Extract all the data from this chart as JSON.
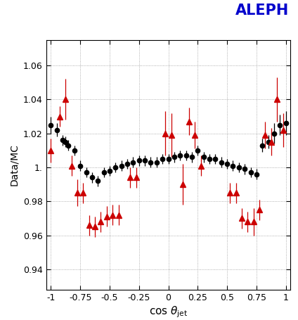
{
  "title": "ALEPH",
  "xlabel": "cos θ_{jet}",
  "ylabel": "Data/MC",
  "xlim": [
    -1.04,
    1.04
  ],
  "ylim": [
    0.928,
    1.075
  ],
  "yticks": [
    0.94,
    0.96,
    0.98,
    1.0,
    1.02,
    1.04,
    1.06
  ],
  "xticks": [
    -1,
    -0.75,
    -0.5,
    -0.25,
    0,
    0.25,
    0.5,
    0.75,
    1
  ],
  "circles_x": [
    -1.0,
    -0.95,
    -0.9,
    -0.875,
    -0.85,
    -0.8,
    -0.75,
    -0.7,
    -0.65,
    -0.6,
    -0.55,
    -0.5,
    -0.45,
    -0.4,
    -0.35,
    -0.3,
    -0.25,
    -0.2,
    -0.15,
    -0.1,
    -0.05,
    0.0,
    0.05,
    0.1,
    0.15,
    0.2,
    0.25,
    0.3,
    0.35,
    0.4,
    0.45,
    0.5,
    0.55,
    0.6,
    0.65,
    0.7,
    0.75,
    0.8,
    0.85,
    0.9,
    0.95,
    1.0
  ],
  "circles_y": [
    1.025,
    1.022,
    1.016,
    1.015,
    1.013,
    1.01,
    1.001,
    0.997,
    0.994,
    0.992,
    0.997,
    0.998,
    1.0,
    1.001,
    1.002,
    1.003,
    1.004,
    1.004,
    1.003,
    1.003,
    1.005,
    1.005,
    1.006,
    1.007,
    1.007,
    1.006,
    1.01,
    1.006,
    1.005,
    1.005,
    1.003,
    1.002,
    1.001,
    1.0,
    0.999,
    0.997,
    0.996,
    1.013,
    1.015,
    1.02,
    1.025,
    1.026
  ],
  "circles_yerr": [
    0.005,
    0.004,
    0.003,
    0.003,
    0.003,
    0.003,
    0.003,
    0.003,
    0.003,
    0.003,
    0.003,
    0.003,
    0.003,
    0.003,
    0.003,
    0.003,
    0.003,
    0.003,
    0.003,
    0.003,
    0.003,
    0.003,
    0.003,
    0.003,
    0.003,
    0.003,
    0.003,
    0.003,
    0.003,
    0.003,
    0.003,
    0.003,
    0.003,
    0.003,
    0.003,
    0.003,
    0.003,
    0.004,
    0.004,
    0.006,
    0.006,
    0.007
  ],
  "triangles_x": [
    -1.0,
    -0.925,
    -0.875,
    -0.825,
    -0.775,
    -0.725,
    -0.675,
    -0.625,
    -0.575,
    -0.525,
    -0.475,
    -0.425,
    -0.325,
    -0.275,
    -0.025,
    0.025,
    0.125,
    0.175,
    0.225,
    0.275,
    0.525,
    0.575,
    0.625,
    0.675,
    0.725,
    0.775,
    0.825,
    0.875,
    0.925,
    0.975
  ],
  "triangles_y": [
    1.01,
    1.03,
    1.04,
    1.001,
    0.985,
    0.985,
    0.966,
    0.965,
    0.968,
    0.971,
    0.972,
    0.972,
    0.994,
    0.994,
    1.02,
    1.019,
    0.99,
    1.027,
    1.019,
    1.001,
    0.985,
    0.985,
    0.97,
    0.968,
    0.968,
    0.975,
    1.019,
    1.015,
    1.04,
    1.022
  ],
  "triangles_yerr": [
    0.007,
    0.006,
    0.012,
    0.006,
    0.008,
    0.006,
    0.006,
    0.006,
    0.006,
    0.006,
    0.006,
    0.006,
    0.006,
    0.006,
    0.013,
    0.013,
    0.012,
    0.008,
    0.008,
    0.006,
    0.006,
    0.006,
    0.006,
    0.006,
    0.008,
    0.006,
    0.008,
    0.008,
    0.013,
    0.01
  ],
  "circle_color": "#000000",
  "triangle_color": "#cc0000",
  "background_color": "#ffffff",
  "grid_color": "#999999",
  "title_color": "#0000cc",
  "title_fontsize": 15
}
